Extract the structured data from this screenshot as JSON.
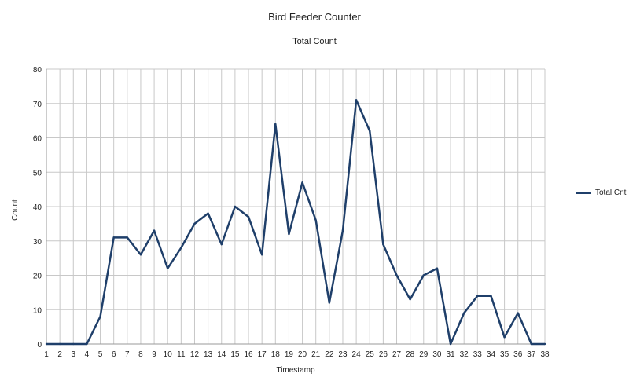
{
  "chart_data": {
    "type": "line",
    "title": "Bird Feeder Counter",
    "subtitle": "Total Count",
    "xlabel": "Timestamp",
    "ylabel": "Count",
    "ylim": [
      0,
      80
    ],
    "yticks": [
      0,
      10,
      20,
      30,
      40,
      50,
      60,
      70,
      80
    ],
    "grid": true,
    "legend_position": "right",
    "categories": [
      "1",
      "2",
      "3",
      "4",
      "5",
      "6",
      "7",
      "8",
      "9",
      "10",
      "11",
      "12",
      "13",
      "14",
      "15",
      "16",
      "17",
      "18",
      "19",
      "20",
      "21",
      "22",
      "23",
      "24",
      "25",
      "26",
      "27",
      "28",
      "29",
      "30",
      "31",
      "32",
      "33",
      "34",
      "35",
      "36",
      "37",
      "38"
    ],
    "series": [
      {
        "name": "Total Cnt",
        "color": "#1f3f6a",
        "values": [
          0,
          0,
          0,
          0,
          8,
          31,
          31,
          26,
          33,
          22,
          28,
          35,
          38,
          29,
          40,
          37,
          26,
          64,
          32,
          47,
          36,
          12,
          33,
          71,
          62,
          29,
          20,
          13,
          20,
          22,
          0,
          9,
          14,
          14,
          2,
          9,
          0,
          0
        ]
      }
    ]
  }
}
